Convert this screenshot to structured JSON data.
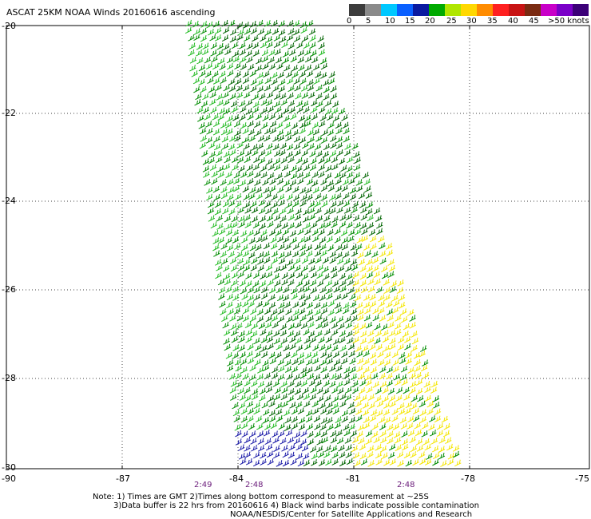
{
  "title": "ASCAT 25KM NOAA Winds 20160616 ascending",
  "color_scale": {
    "labels": [
      "0",
      "5",
      "10",
      "15",
      "20",
      "25",
      "30",
      "35",
      "40",
      "45",
      ">50 knots"
    ],
    "colors": [
      "#3c3c3c",
      "#8a8a8a",
      "#00c8ff",
      "#0a60ff",
      "#0a1aa0",
      "#00aa00",
      "#b0e600",
      "#ffd800",
      "#ff8c00",
      "#ff2020",
      "#c81414",
      "#7a2b12",
      "#c800c8",
      "#7a00c8",
      "#3c0078"
    ]
  },
  "axes": {
    "lat_labels": [
      "-20",
      "-22",
      "-24",
      "-26",
      "-28",
      "-30"
    ],
    "lon_labels": [
      "-90",
      "-87",
      "-84",
      "-81",
      "-78",
      "-75"
    ]
  },
  "pass_times": [
    "2:49",
    "2:48",
    "2:48"
  ],
  "notes": [
    "Note: 1) Times are GMT 2)Times along bottom correspond to measurement at ~25S",
    "3)Data buffer is 22 hrs from 20160616 4) Black wind barbs indicate possible contamination",
    "NOAA/NESDIS/Center for Satellite Applications and Research"
  ],
  "barb_colors": {
    "green_dark": "#006400",
    "green_mid": "#008c00",
    "green_light": "#22bb22",
    "yellow": "#f4e600",
    "blue": "#1a1aa8"
  }
}
